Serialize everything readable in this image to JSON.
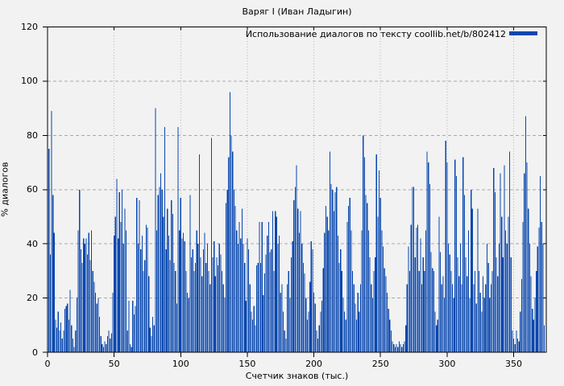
{
  "title": "Варяг I (Иван Ладыгин)",
  "legend": {
    "label": "Использование диалогов по тексту coollib.net/b/802412",
    "swatch_color": "#0847ae"
  },
  "colors": {
    "background": "#f2f2f2",
    "bar": "#0847ae",
    "border": "#000000",
    "grid_horizontal": "#a9a9a9",
    "grid_vertical": "#b3b3b3",
    "text": "#000000"
  },
  "chart_data": {
    "type": "bar",
    "style": "impulses",
    "title": "Варяг I (Иван Ладыгин)",
    "xlabel": "Счетчик знаков (тыс.)",
    "ylabel": "% диалогов",
    "legend_entry": "Использование диалогов по тексту coollib.net/b/802412",
    "legend_position": "top-right-inside",
    "grid": true,
    "xlim": [
      0,
      374.5
    ],
    "ylim": [
      0,
      120
    ],
    "x_ticks": [
      0,
      50,
      100,
      150,
      200,
      250,
      300,
      350
    ],
    "y_ticks": [
      0,
      20,
      40,
      60,
      80,
      100,
      120
    ],
    "x_start": 0,
    "x_step": 1,
    "values": [
      40,
      75,
      36,
      89,
      58,
      44,
      12,
      9,
      15,
      8,
      11,
      5,
      8,
      16,
      17,
      18,
      12,
      23,
      10,
      5,
      2,
      8,
      20,
      45,
      60,
      38,
      33,
      42,
      40,
      42,
      36,
      44,
      34,
      45,
      30,
      26,
      22,
      18,
      20,
      13,
      6,
      3,
      2,
      4,
      3,
      6,
      8,
      5,
      7,
      22,
      43,
      50,
      64,
      42,
      59,
      48,
      60,
      40,
      53,
      45,
      8,
      19,
      3,
      2,
      19,
      14,
      17,
      57,
      40,
      56,
      38,
      43,
      30,
      34,
      47,
      46,
      28,
      9,
      6,
      13,
      10,
      90,
      45,
      58,
      61,
      66,
      60,
      50,
      83,
      38,
      53,
      43,
      34,
      56,
      51,
      33,
      30,
      18,
      83,
      45,
      57,
      42,
      44,
      41,
      30,
      22,
      20,
      58,
      35,
      38,
      30,
      33,
      45,
      40,
      73,
      35,
      28,
      38,
      44,
      33,
      40,
      30,
      25,
      79,
      35,
      41,
      28,
      35,
      32,
      40,
      36,
      30,
      25,
      20,
      55,
      60,
      72,
      96,
      80,
      74,
      60,
      54,
      45,
      40,
      48,
      42,
      53,
      40,
      33,
      19,
      42,
      38,
      25,
      15,
      12,
      17,
      10,
      32,
      33,
      48,
      33,
      48,
      21,
      29,
      36,
      43,
      48,
      37,
      38,
      52,
      30,
      52,
      50,
      40,
      43,
      22,
      25,
      15,
      8,
      5,
      25,
      30,
      20,
      35,
      41,
      56,
      61,
      69,
      53,
      44,
      52,
      40,
      33,
      29,
      20,
      12,
      15,
      26,
      41,
      38,
      22,
      18,
      8,
      5,
      10,
      15,
      19,
      31,
      44,
      54,
      50,
      45,
      74,
      62,
      60,
      52,
      59,
      61,
      43,
      33,
      38,
      30,
      20,
      15,
      12,
      48,
      54,
      57,
      45,
      30,
      25,
      18,
      12,
      22,
      15,
      25,
      45,
      80,
      72,
      58,
      55,
      45,
      35,
      25,
      20,
      30,
      35,
      73,
      50,
      67,
      57,
      45,
      39,
      31,
      28,
      22,
      16,
      12,
      8,
      4,
      3,
      2,
      3,
      2,
      4,
      3,
      2,
      3,
      4,
      10,
      25,
      39,
      30,
      47,
      61,
      61,
      35,
      46,
      47,
      30,
      42,
      25,
      35,
      30,
      45,
      74,
      70,
      62,
      37,
      31,
      30,
      15,
      10,
      12,
      50,
      37,
      25,
      28,
      20,
      78,
      70,
      40,
      36,
      30,
      25,
      20,
      71,
      65,
      35,
      28,
      40,
      25,
      72,
      58,
      35,
      28,
      45,
      20,
      60,
      53,
      25,
      30,
      18,
      53,
      30,
      22,
      15,
      28,
      20,
      25,
      40,
      33,
      20,
      25,
      30,
      68,
      59,
      35,
      28,
      40,
      66,
      50,
      35,
      69,
      45,
      40,
      50,
      74,
      35,
      8,
      5,
      3,
      8,
      5,
      4,
      15,
      27,
      48,
      66,
      87,
      70,
      53,
      40,
      28,
      16,
      12,
      20,
      30,
      39,
      46,
      65,
      48,
      40,
      10
    ]
  }
}
